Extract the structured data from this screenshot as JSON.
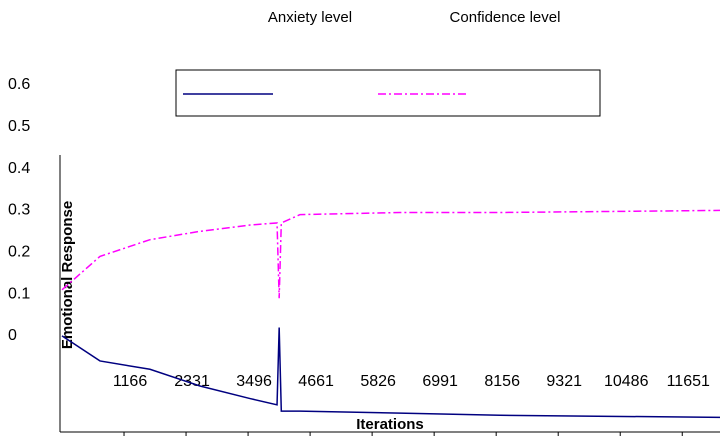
{
  "chart_data": {
    "type": "line",
    "x_label": "Iterations",
    "y_label": "Emotional Response",
    "x": [
      1,
      714,
      1653,
      2593,
      3533,
      4040,
      4080,
      4120,
      4472,
      6351,
      8230,
      12360
    ],
    "series": [
      {
        "name": "Anxiety level",
        "color": "#000080",
        "dash": false,
        "values": [
          0,
          -0.06,
          -0.08,
          -0.12,
          -0.15,
          -0.165,
          0.02,
          -0.18,
          -0.18,
          -0.185,
          -0.19,
          -0.195
        ]
      },
      {
        "name": "Confidence level",
        "color": "#ff00ff",
        "dash": true,
        "values": [
          0.11,
          0.19,
          0.23,
          0.25,
          0.265,
          0.27,
          0.09,
          0.27,
          0.29,
          0.295,
          0.295,
          0.3
        ]
      }
    ],
    "xlim": [
      1,
      12360
    ],
    "xticks": [
      1166,
      2331,
      3496,
      4661,
      5826,
      6991,
      8156,
      9321,
      10486,
      11651
    ],
    "ylim": [
      -0.23,
      0.6
    ],
    "yticks": [
      0.6,
      0.5,
      0.4,
      0.3,
      0.2,
      0.1,
      0
    ]
  }
}
